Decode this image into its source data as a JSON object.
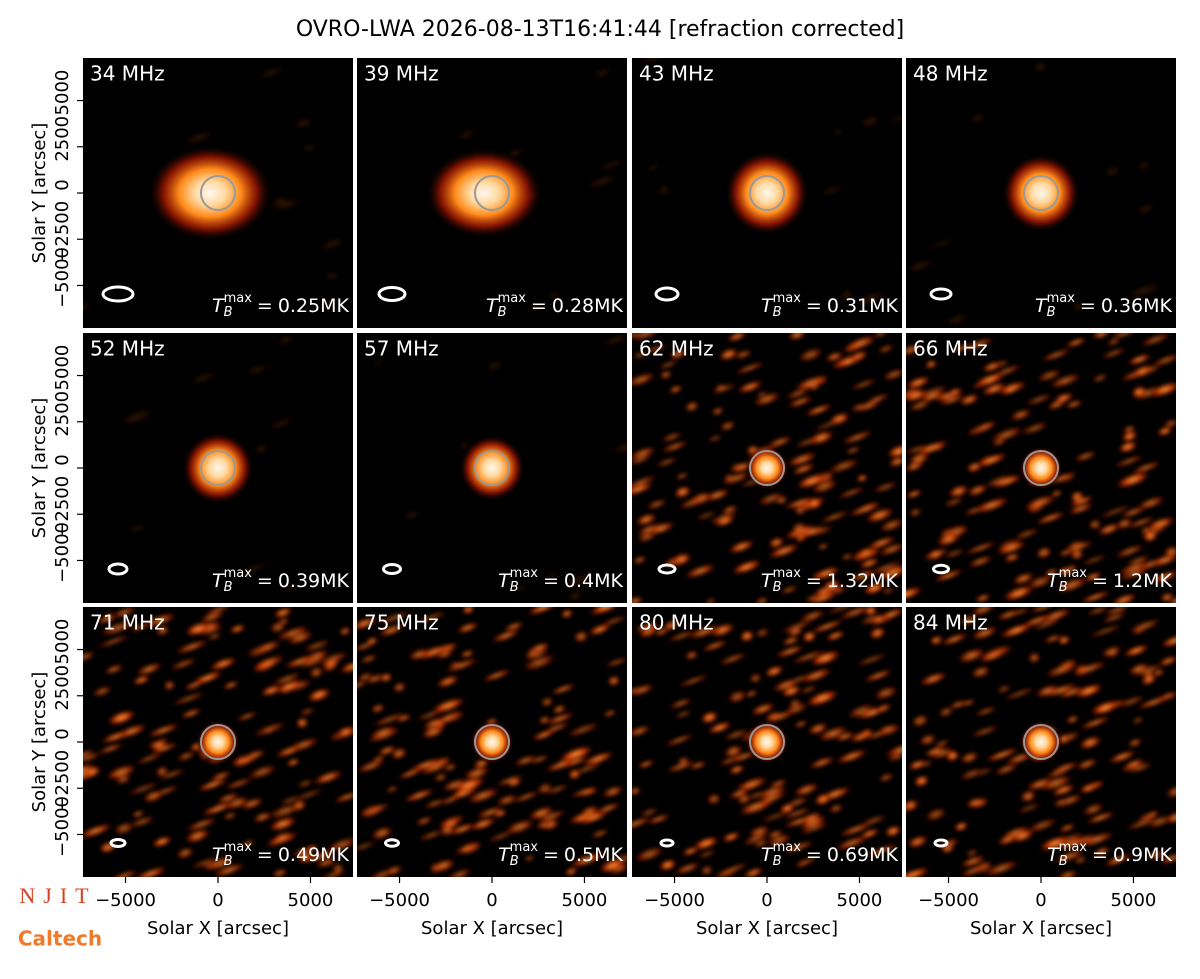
{
  "chart_data": {
    "type": "image-grid",
    "title": "OVRO-LWA 2026-08-13T16:41:44 [refraction corrected]",
    "xlabel": "Solar X [arcsec]",
    "ylabel": "Solar Y [arcsec]",
    "xlim": [
      -7300,
      7300
    ],
    "ylim": [
      -7300,
      7300
    ],
    "xticks": [
      {
        "value": -5000,
        "label": "−5000"
      },
      0,
      5000
    ],
    "yticks": [
      {
        "value": -5000,
        "label": "−5000"
      },
      {
        "value": -2500,
        "label": "−2500"
      },
      0,
      2500,
      5000
    ],
    "tmax_symbol": {
      "base": "T",
      "sub": "B",
      "sup": "max",
      "eq": "="
    },
    "panels": [
      {
        "freq": "34 MHz",
        "tmax": "0.25MK"
      },
      {
        "freq": "39 MHz",
        "tmax": "0.28MK"
      },
      {
        "freq": "43 MHz",
        "tmax": "0.31MK"
      },
      {
        "freq": "48 MHz",
        "tmax": "0.36MK"
      },
      {
        "freq": "52 MHz",
        "tmax": "0.39MK"
      },
      {
        "freq": "57 MHz",
        "tmax": "0.4MK"
      },
      {
        "freq": "62 MHz",
        "tmax": "1.32MK"
      },
      {
        "freq": "66 MHz",
        "tmax": "1.2MK"
      },
      {
        "freq": "71 MHz",
        "tmax": "0.49MK"
      },
      {
        "freq": "75 MHz",
        "tmax": "0.5MK"
      },
      {
        "freq": "80 MHz",
        "tmax": "0.69MK"
      },
      {
        "freq": "84 MHz",
        "tmax": "0.9MK"
      }
    ],
    "logos": [
      "NJIT",
      "Caltech"
    ]
  }
}
